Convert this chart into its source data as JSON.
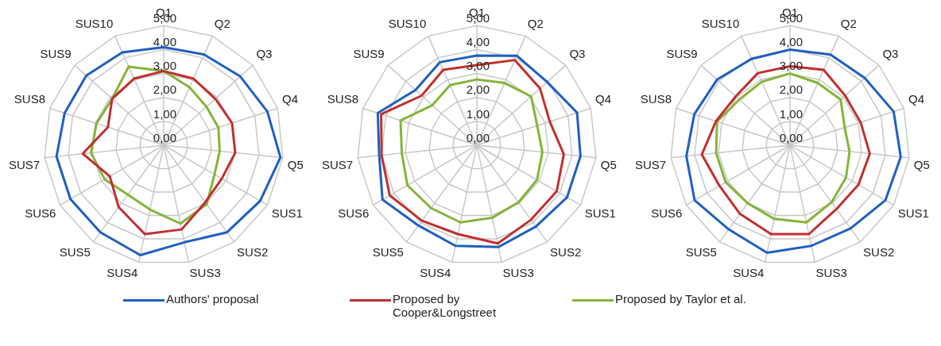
{
  "chart_data": [
    {
      "type": "radar",
      "categories": [
        "Q1",
        "Q2",
        "Q3",
        "Q4",
        "Q5",
        "SUS1",
        "SUS2",
        "SUS3",
        "SUS4",
        "SUS5",
        "SUS6",
        "SUS7",
        "SUS8",
        "SUS9",
        "SUS10"
      ],
      "ylim": [
        0,
        5
      ],
      "yticks": [
        {
          "value": 0,
          "label": "0,00"
        },
        {
          "value": 1,
          "label": "1,00"
        },
        {
          "value": 2,
          "label": "2,00"
        },
        {
          "value": 3,
          "label": "3,00"
        },
        {
          "value": 4,
          "label": "4,00"
        },
        {
          "value": 5,
          "label": "5,00"
        }
      ],
      "grid": true,
      "marker": "none",
      "legend": "bottom",
      "series": [
        {
          "name": "Authors' proposal",
          "color": "#1f5fc0",
          "values": [
            4.1,
            4.15,
            4.3,
            4.55,
            4.9,
            4.65,
            4.5,
            4.15,
            4.7,
            4.5,
            4.5,
            4.5,
            4.35,
            4.35,
            4.25
          ]
        },
        {
          "name": "Proposed by Cooper&Longstreet",
          "color": "#c0302e",
          "values": [
            3.1,
            3.05,
            2.9,
            3.0,
            3.0,
            2.8,
            2.95,
            3.6,
            3.8,
            3.2,
            2.6,
            3.4,
            2.45,
            2.9,
            3.05
          ]
        },
        {
          "name": "Proposed by Taylor et al.",
          "color": "#86b33a",
          "values": [
            3.1,
            2.65,
            2.4,
            2.4,
            2.35,
            2.45,
            3.05,
            3.35,
            2.75,
            2.55,
            2.85,
            3.05,
            2.95,
            2.9,
            3.6
          ]
        }
      ]
    },
    {
      "type": "radar",
      "categories": [
        "Q1",
        "Q2",
        "Q3",
        "Q4",
        "Q5",
        "SUS1",
        "SUS2",
        "SUS3",
        "SUS4",
        "SUS5",
        "SUS6",
        "SUS7",
        "SUS8",
        "SUS9",
        "SUS10"
      ],
      "ylim": [
        0,
        5
      ],
      "yticks": [
        {
          "value": 0,
          "label": "0,00"
        },
        {
          "value": 1,
          "label": "1,00"
        },
        {
          "value": 2,
          "label": "2,00"
        },
        {
          "value": 3,
          "label": "3,00"
        },
        {
          "value": 4,
          "label": "4,00"
        },
        {
          "value": 5,
          "label": "5,00"
        }
      ],
      "grid": true,
      "marker": "none",
      "series": [
        {
          "color": "#1f5fc0",
          "values": [
            3.75,
            4.1,
            3.95,
            4.4,
            4.35,
            4.35,
            4.2,
            4.35,
            4.3,
            4.15,
            4.55,
            4.1,
            4.35,
            3.45,
            3.8
          ]
        },
        {
          "color": "#c0302e",
          "values": [
            3.35,
            3.9,
            3.55,
            3.2,
            3.65,
            3.85,
            3.85,
            4.2,
            3.8,
            3.9,
            4.2,
            4.0,
            4.2,
            3.1,
            3.45
          ]
        },
        {
          "color": "#86b33a",
          "values": [
            2.75,
            2.85,
            3.05,
            2.65,
            2.75,
            2.9,
            2.95,
            3.1,
            3.3,
            3.25,
            3.35,
            3.15,
            3.35,
            2.5,
            2.75
          ]
        }
      ]
    },
    {
      "type": "radar",
      "categories": [
        "Q1",
        "Q2",
        "Q3",
        "Q4",
        "Q5",
        "SUS1",
        "SUS2",
        "SUS3",
        "SUS4",
        "SUS5",
        "SUS6",
        "SUS7",
        "SUS8",
        "SUS9",
        "SUS10"
      ],
      "ylim": [
        0,
        5
      ],
      "yticks": [
        {
          "value": 0,
          "label": "0,00"
        },
        {
          "value": 1,
          "label": "1,00"
        },
        {
          "value": 2,
          "label": "2,00"
        },
        {
          "value": 3,
          "label": "3,00"
        },
        {
          "value": 4,
          "label": "4,00"
        },
        {
          "value": 5,
          "label": "5,00"
        }
      ],
      "grid": true,
      "marker": "none",
      "series": [
        {
          "color": "#1f5fc0",
          "values": [
            4.0,
            4.15,
            4.2,
            4.55,
            4.65,
            4.6,
            4.3,
            4.3,
            4.6,
            4.35,
            4.6,
            4.35,
            4.2,
            4.1,
            3.95
          ]
        },
        {
          "color": "#c0302e",
          "values": [
            3.3,
            3.45,
            3.1,
            3.1,
            3.35,
            3.3,
            3.3,
            3.8,
            3.8,
            3.55,
            3.4,
            3.7,
            3.25,
            3.05,
            3.3
          ]
        },
        {
          "color": "#86b33a",
          "values": [
            3.0,
            2.85,
            2.85,
            2.4,
            2.5,
            2.7,
            2.95,
            3.3,
            3.15,
            3.0,
            3.1,
            3.1,
            3.2,
            2.85,
            2.9
          ]
        }
      ]
    }
  ]
}
